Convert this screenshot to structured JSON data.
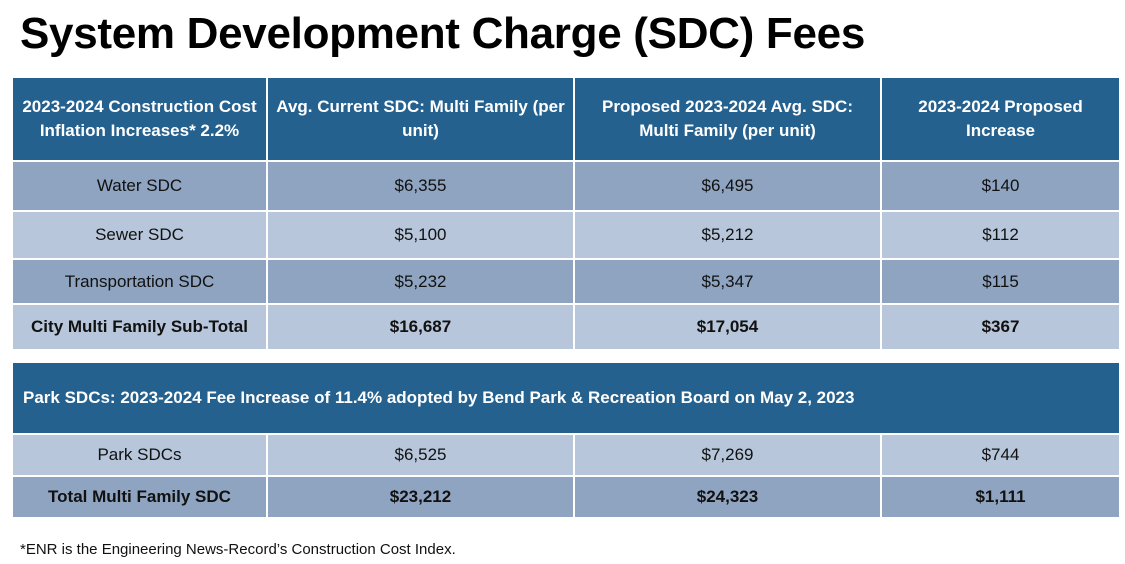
{
  "title": "System Development Charge (SDC) Fees",
  "header": {
    "col1": "2023-2024 Construction Cost Inflation Increases* 2.2%",
    "col2": "Avg. Current SDC: Multi Family (per unit)",
    "col3": "Proposed 2023-2024 Avg. SDC: Multi Family (per unit)",
    "col4": "2023-2024 Proposed Increase"
  },
  "rows": [
    {
      "label": "Water SDC",
      "current": "$6,355",
      "proposed": "$6,495",
      "increase": "$140"
    },
    {
      "label": "Sewer SDC",
      "current": "$5,100",
      "proposed": "$5,212",
      "increase": "$112"
    },
    {
      "label": "Transportation SDC",
      "current": "$5,232",
      "proposed": "$5,347",
      "increase": "$115"
    },
    {
      "label": "City Multi Family Sub-Total",
      "current": "$16,687",
      "proposed": "$17,054",
      "increase": "$367"
    }
  ],
  "park_header": "Park SDCs: 2023-2024 Fee Increase of 11.4% adopted by Bend Park & Recreation Board on May 2, 2023",
  "park_rows": [
    {
      "label": "Park SDCs",
      "current": "$6,525",
      "proposed": "$7,269",
      "increase": "$744"
    },
    {
      "label": "Total Multi Family SDC",
      "current": "$23,212",
      "proposed": "$24,323",
      "increase": "$1,111"
    }
  ],
  "footnote": "*ENR is the Engineering News-Record’s Construction Cost Index."
}
